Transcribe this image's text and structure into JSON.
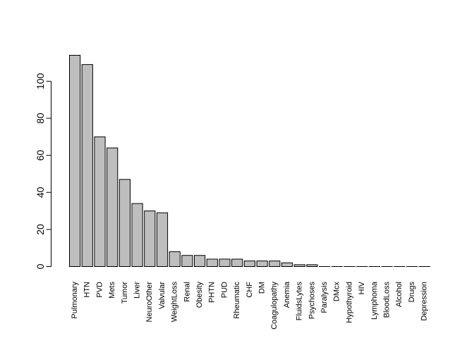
{
  "chart_data": {
    "type": "bar",
    "title": "",
    "xlabel": "",
    "ylabel": "",
    "ylim": [
      0,
      114
    ],
    "yticks": [
      0,
      20,
      40,
      60,
      80,
      100
    ],
    "grid": false,
    "bar_color": "#bebebe",
    "bar_edge_color": "#000000",
    "categories": [
      "Pulmonary",
      "HTN",
      "PVD",
      "Mets",
      "Tumor",
      "Liver",
      "NeuroOther",
      "Valvular",
      "WeightLoss",
      "Renal",
      "Obesity",
      "PHTN",
      "PUD",
      "Rheumatic",
      "CHF",
      "DM",
      "Coagulopathy",
      "Anemia",
      "FluidsLytes",
      "Psychoses",
      "Paralysis",
      "DMcx",
      "Hypothyroid",
      "HIV",
      "Lymphoma",
      "BloodLoss",
      "Alcohol",
      "Drugs",
      "Depression"
    ],
    "values": [
      114,
      109,
      70,
      64,
      47,
      34,
      30,
      29,
      8,
      6,
      6,
      4,
      4,
      4,
      3,
      3,
      3,
      2,
      1,
      1,
      0,
      0,
      0,
      0,
      0,
      0,
      0,
      0,
      0
    ]
  }
}
